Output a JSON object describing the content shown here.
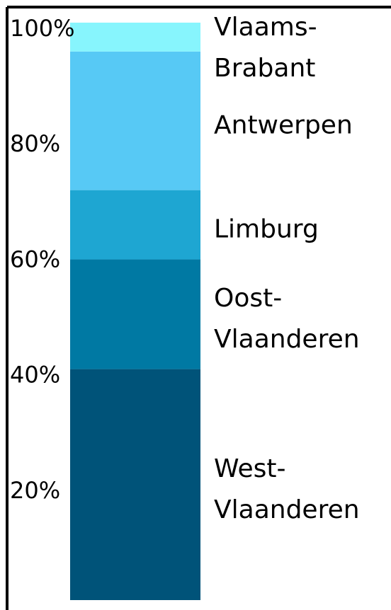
{
  "chart_data": {
    "type": "stacked-bar",
    "series": [
      {
        "name": "West-Vlaanderen",
        "color": "#005379",
        "values": [
          40
        ]
      },
      {
        "name": "Oost-Vlaanderen",
        "color": "#0079a3",
        "values": [
          19
        ]
      },
      {
        "name": "Limburg",
        "color": "#1ea6d2",
        "values": [
          12
        ]
      },
      {
        "name": "Antwerpen",
        "color": "#57c9f5",
        "values": [
          24
        ]
      },
      {
        "name": "Vlaams-Brabant",
        "color": "#87f5fd",
        "values": [
          5
        ]
      }
    ],
    "ylim": [
      0,
      100
    ],
    "yticks": [
      {
        "value": 20,
        "label": "20%"
      },
      {
        "value": 40,
        "label": "40%"
      },
      {
        "value": 60,
        "label": "60%"
      },
      {
        "value": 80,
        "label": "80%"
      },
      {
        "value": 100,
        "label": "100%"
      }
    ]
  }
}
